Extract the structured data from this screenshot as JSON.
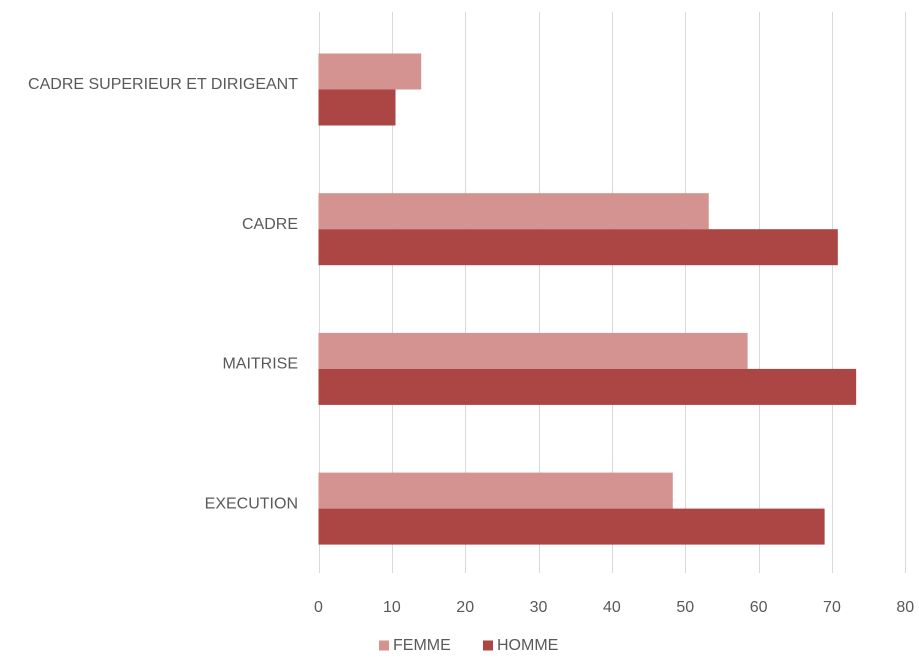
{
  "chart_data": {
    "type": "bar",
    "orientation": "horizontal",
    "categories": [
      "CADRE SUPERIEUR ET DIRIGEANT",
      "CADRE",
      "MAITRISE",
      "EXECUTION"
    ],
    "series": [
      {
        "name": "FEMME",
        "color": "#d49291",
        "values": [
          14,
          53.2,
          58.5,
          48.3
        ]
      },
      {
        "name": "HOMME",
        "color": "#ab4645",
        "values": [
          10.5,
          70.8,
          73.3,
          69
        ]
      }
    ],
    "xlim": [
      0,
      80
    ],
    "xticks": [
      0,
      10,
      20,
      30,
      40,
      50,
      60,
      70,
      80
    ],
    "grid": "vertical",
    "legend_position": "bottom"
  }
}
